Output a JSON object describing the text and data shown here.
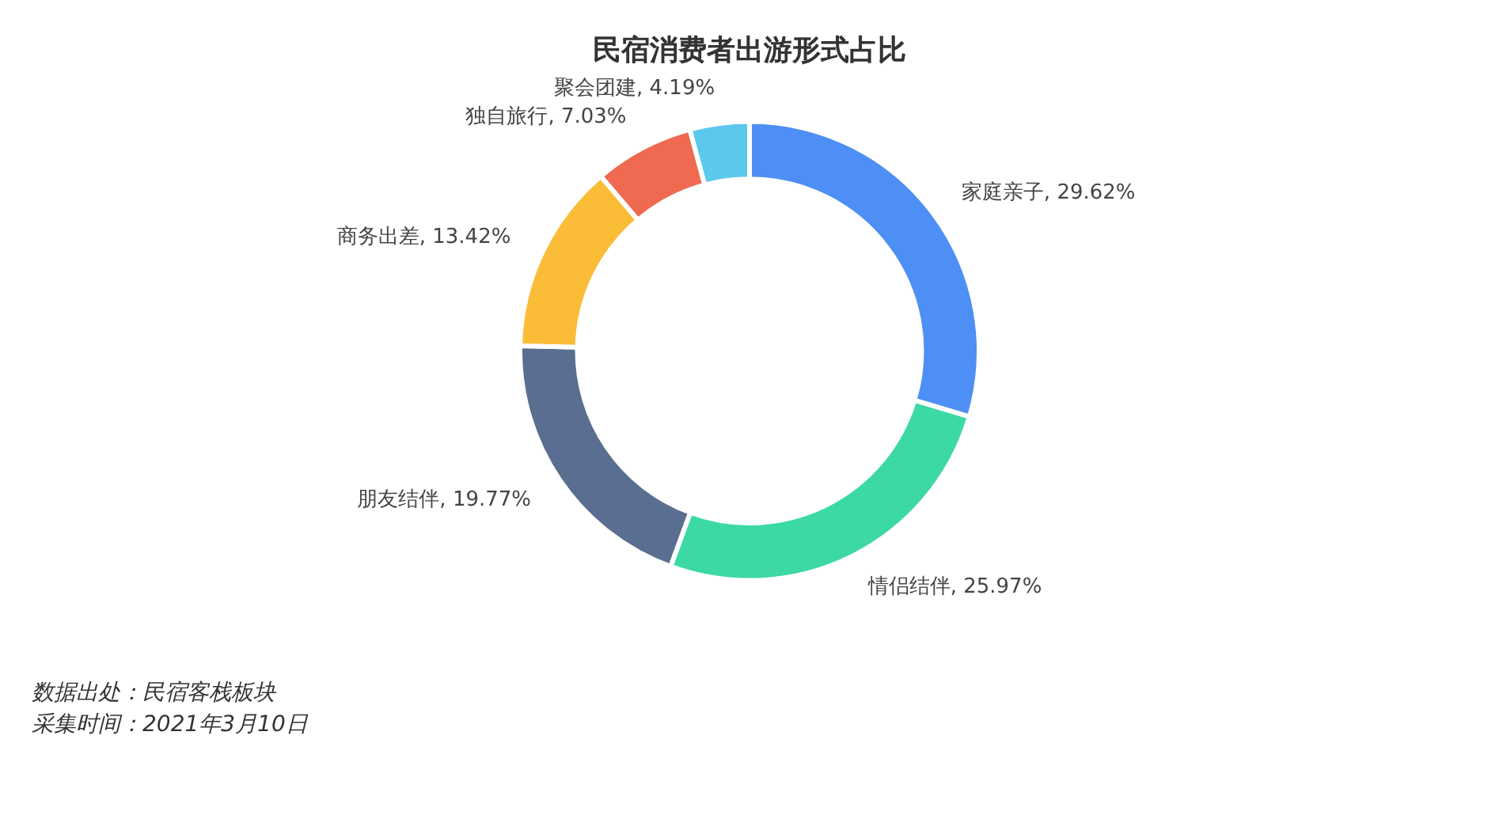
{
  "chart_data": {
    "type": "donut",
    "title": "民宿消费者出游形式占比",
    "categories": [
      "家庭亲子",
      "情侣结伴",
      "朋友结伴",
      "商务出差",
      "独自旅行",
      "聚会团建"
    ],
    "values": [
      29.62,
      25.97,
      19.77,
      13.42,
      7.03,
      4.19
    ],
    "value_labels": [
      "29.62%",
      "25.97%",
      "19.77%",
      "13.42%",
      "7.03%",
      "4.19%"
    ],
    "colors": [
      "#4e8ff5",
      "#3dd9a5",
      "#5a6e91",
      "#fbbd38",
      "#ef6a50",
      "#5bc8ec"
    ],
    "legend": false,
    "annotations": [
      "数据出处：民宿客栈板块",
      "采集时间：2021年3月10日"
    ]
  }
}
